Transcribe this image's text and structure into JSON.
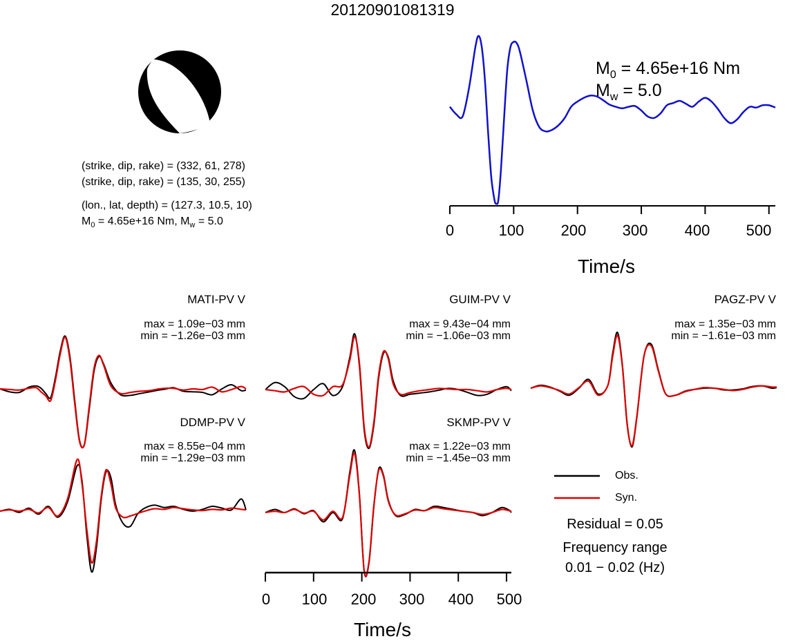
{
  "title": "20120901081319",
  "source": {
    "nodal_plane_1": "(strike, dip, rake) = (332, 61, 278)",
    "nodal_plane_2": "(strike, dip, rake) = (135, 30, 255)",
    "location": "(lon., lat, depth) = (127.3, 10.5, 10)",
    "m0_label": "M",
    "m0_sub": "0",
    "m0_rest": " = 4.65e+16 Nm, M",
    "mw_sub": "w",
    "mw_rest": " = 5.0"
  },
  "stf_panel": {
    "m0_label": "M",
    "m0_sub": "0",
    "m0_value": " = 4.65e+16 Nm",
    "mw_label": "M",
    "mw_sub": "w",
    "mw_value": " = 5.0",
    "xlabel": "Time/s",
    "xticks": [
      "0",
      "100",
      "200",
      "300",
      "400",
      "500"
    ]
  },
  "waveform_axis": {
    "xlabel": "Time/s",
    "xticks": [
      "0",
      "100",
      "200",
      "300",
      "400",
      "500"
    ]
  },
  "stations": [
    {
      "name": "MATI-PV V",
      "max": "max = 1.09e−03 mm",
      "min": "min = −1.26e−03 mm"
    },
    {
      "name": "GUIM-PV V",
      "max": "max = 9.43e−04 mm",
      "min": "min = −1.06e−03 mm"
    },
    {
      "name": "PAGZ-PV V",
      "max": "max = 1.35e−03 mm",
      "min": "min = −1.61e−03 mm"
    },
    {
      "name": "DDMP-PV V",
      "max": "max = 8.55e−04 mm",
      "min": "min = −1.29e−03 mm"
    },
    {
      "name": "SKMP-PV V",
      "max": "max = 1.22e−03 mm",
      "min": "min = −1.45e−03 mm"
    }
  ],
  "legend": {
    "obs": "Obs.",
    "syn": "Syn.",
    "obs_color": "#000000",
    "syn_color": "#dd0000"
  },
  "residual": "Residual = 0.05",
  "freq_label": "Frequency range",
  "freq_value": "0.01 − 0.02 (Hz)",
  "chart_data": [
    {
      "type": "line",
      "name": "source time function",
      "color": "#1010cc",
      "xlim": [
        0,
        510
      ],
      "x": [
        0,
        10,
        20,
        30,
        40,
        45,
        50,
        55,
        60,
        65,
        70,
        73,
        76,
        80,
        85,
        90,
        95,
        100,
        105,
        110,
        120,
        130,
        140,
        150,
        160,
        170,
        180,
        190,
        200,
        210,
        220,
        230,
        240,
        250,
        260,
        270,
        280,
        290,
        300,
        310,
        320,
        330,
        340,
        350,
        360,
        370,
        380,
        390,
        400,
        410,
        420,
        430,
        440,
        450,
        460,
        470,
        480,
        490,
        500,
        510
      ],
      "y": [
        0.05,
        -0.05,
        -0.08,
        0.3,
        0.85,
        1.0,
        0.85,
        0.4,
        -0.3,
        -0.9,
        -1.2,
        -1.25,
        -1.2,
        -0.8,
        -0.1,
        0.55,
        0.85,
        0.92,
        0.9,
        0.78,
        0.4,
        0.0,
        -0.22,
        -0.28,
        -0.26,
        -0.2,
        -0.1,
        0.05,
        0.12,
        0.17,
        0.2,
        0.19,
        0.14,
        0.08,
        0.05,
        0.03,
        0.05,
        0.06,
        0.0,
        -0.08,
        -0.1,
        -0.04,
        0.07,
        0.1,
        0.13,
        0.09,
        0.05,
        0.12,
        0.17,
        0.12,
        0.02,
        -0.1,
        -0.17,
        -0.12,
        -0.02,
        0.05,
        0.04,
        0.07,
        0.07,
        0.04
      ],
      "xlabel": "Time/s",
      "xticks": [
        0,
        100,
        200,
        300,
        400,
        500
      ]
    },
    {
      "type": "line",
      "station": "MATI-PV V",
      "xlim": [
        0,
        510
      ],
      "x": [
        0,
        20,
        40,
        60,
        75,
        85,
        95,
        105,
        115,
        125,
        135,
        145,
        155,
        165,
        175,
        185,
        195,
        205,
        215,
        230,
        250,
        270,
        290,
        310,
        330,
        345,
        360,
        380,
        400,
        420,
        440,
        460,
        480,
        500,
        510
      ],
      "obs": [
        0.0,
        -0.05,
        -0.06,
        0.03,
        0.05,
        0.01,
        -0.08,
        -0.15,
        0.2,
        0.65,
        0.9,
        0.55,
        -0.2,
        -0.88,
        -0.95,
        -0.35,
        0.3,
        0.55,
        0.42,
        0.1,
        -0.1,
        -0.11,
        -0.08,
        -0.05,
        -0.02,
        0.0,
        0.02,
        -0.04,
        -0.05,
        -0.06,
        -0.1,
        0.0,
        0.07,
        -0.03,
        -0.02
      ],
      "syn": [
        0.0,
        -0.01,
        -0.02,
        0.01,
        0.02,
        -0.05,
        -0.12,
        -0.2,
        0.15,
        0.6,
        0.88,
        0.5,
        -0.25,
        -0.9,
        -0.94,
        -0.3,
        0.35,
        0.57,
        0.4,
        0.05,
        -0.08,
        -0.06,
        -0.04,
        -0.03,
        0.0,
        0.01,
        0.01,
        -0.02,
        0.0,
        -0.01,
        0.03,
        -0.05,
        -0.01,
        0.04,
        0.0
      ]
    },
    {
      "type": "line",
      "station": "GUIM-PV V",
      "xlim": [
        0,
        510
      ],
      "x": [
        0,
        20,
        40,
        60,
        80,
        100,
        120,
        140,
        160,
        175,
        185,
        195,
        205,
        215,
        225,
        235,
        245,
        255,
        265,
        280,
        300,
        320,
        340,
        360,
        380,
        400,
        420,
        440,
        460,
        480,
        500,
        510
      ],
      "obs": [
        0.0,
        0.12,
        0.05,
        -0.12,
        -0.15,
        0.0,
        0.1,
        -0.1,
        0.05,
        0.55,
        0.95,
        0.4,
        -0.7,
        -1.0,
        -0.6,
        0.2,
        0.62,
        0.55,
        0.15,
        -0.1,
        -0.08,
        -0.06,
        -0.04,
        -0.01,
        0.02,
        0.0,
        -0.05,
        -0.1,
        -0.08,
        0.0,
        0.05,
        -0.02
      ],
      "syn": [
        0.0,
        -0.02,
        -0.04,
        0.02,
        0.05,
        -0.08,
        -0.1,
        0.05,
        0.08,
        0.5,
        0.9,
        0.45,
        -0.65,
        -0.98,
        -0.55,
        0.25,
        0.65,
        0.52,
        0.1,
        -0.08,
        -0.05,
        -0.02,
        0.0,
        0.02,
        0.01,
        0.0,
        0.0,
        -0.02,
        -0.04,
        0.0,
        0.02,
        0.0
      ]
    },
    {
      "type": "line",
      "station": "PAGZ-PV V",
      "xlim": [
        0,
        510
      ],
      "x": [
        0,
        20,
        40,
        60,
        80,
        100,
        120,
        140,
        160,
        170,
        180,
        190,
        200,
        210,
        220,
        235,
        250,
        265,
        280,
        300,
        320,
        340,
        360,
        380,
        400,
        420,
        440,
        460,
        480,
        500,
        510
      ],
      "obs": [
        0.0,
        0.05,
        0.02,
        -0.05,
        -0.12,
        0.0,
        0.15,
        -0.1,
        0.05,
        0.6,
        0.95,
        0.4,
        -0.6,
        -1.0,
        -0.5,
        0.55,
        0.75,
        0.3,
        -0.1,
        -0.12,
        -0.05,
        -0.02,
        0.0,
        0.0,
        -0.03,
        -0.03,
        -0.01,
        0.03,
        0.04,
        0.0,
        0.01
      ],
      "syn": [
        0.0,
        0.04,
        0.01,
        -0.04,
        -0.1,
        0.01,
        0.12,
        -0.12,
        0.05,
        0.55,
        0.9,
        0.38,
        -0.62,
        -0.98,
        -0.48,
        0.55,
        0.72,
        0.28,
        -0.1,
        -0.12,
        -0.06,
        -0.02,
        0.01,
        0.0,
        -0.02,
        -0.04,
        -0.02,
        0.02,
        0.04,
        0.02,
        0.02
      ]
    },
    {
      "type": "line",
      "station": "DDMP-PV V",
      "xlim": [
        0,
        510
      ],
      "x": [
        0,
        20,
        40,
        60,
        80,
        100,
        120,
        140,
        160,
        170,
        180,
        190,
        200,
        210,
        220,
        230,
        240,
        255,
        270,
        285,
        300,
        320,
        340,
        360,
        380,
        400,
        420,
        440,
        460,
        480,
        500,
        510
      ],
      "obs": [
        0.0,
        0.03,
        -0.02,
        0.05,
        -0.05,
        0.08,
        -0.1,
        0.15,
        0.75,
        0.5,
        -0.4,
        -1.0,
        -0.6,
        0.2,
        0.65,
        0.55,
        0.1,
        -0.2,
        -0.25,
        -0.05,
        0.05,
        0.1,
        0.06,
        0.08,
        0.03,
        0.0,
        0.03,
        0.08,
        0.05,
        0.02,
        0.2,
        0.02
      ],
      "syn": [
        0.0,
        0.02,
        0.0,
        0.03,
        -0.03,
        0.06,
        -0.08,
        0.2,
        0.85,
        0.45,
        -0.3,
        -0.85,
        -0.5,
        0.25,
        0.68,
        0.45,
        0.05,
        -0.1,
        -0.08,
        -0.04,
        0.0,
        0.04,
        0.03,
        0.06,
        0.04,
        0.02,
        0.01,
        0.03,
        0.02,
        0.05,
        0.03,
        0.02
      ]
    },
    {
      "type": "line",
      "station": "SKMP-PV V",
      "xlim": [
        0,
        510
      ],
      "x": [
        0,
        20,
        40,
        60,
        80,
        100,
        120,
        140,
        160,
        175,
        185,
        195,
        205,
        215,
        225,
        235,
        245,
        255,
        270,
        290,
        310,
        330,
        350,
        370,
        390,
        410,
        430,
        450,
        470,
        490,
        505,
        510
      ],
      "obs": [
        0.0,
        0.05,
        0.0,
        0.06,
        -0.02,
        0.03,
        -0.15,
        0.0,
        -0.1,
        0.65,
        1.0,
        0.3,
        -0.95,
        -0.8,
        0.1,
        0.7,
        0.6,
        0.2,
        -0.05,
        -0.03,
        0.05,
        0.03,
        0.1,
        0.08,
        0.05,
        0.02,
        0.0,
        -0.05,
        0.0,
        0.08,
        0.04,
        0.0
      ],
      "syn": [
        0.0,
        0.02,
        0.0,
        0.05,
        -0.01,
        0.02,
        -0.12,
        0.02,
        -0.08,
        0.6,
        0.95,
        0.28,
        -0.95,
        -0.78,
        0.12,
        0.68,
        0.58,
        0.18,
        -0.04,
        -0.02,
        0.04,
        0.03,
        0.08,
        0.06,
        0.04,
        0.02,
        0.0,
        -0.03,
        0.0,
        0.05,
        0.03,
        0.02
      ]
    }
  ]
}
